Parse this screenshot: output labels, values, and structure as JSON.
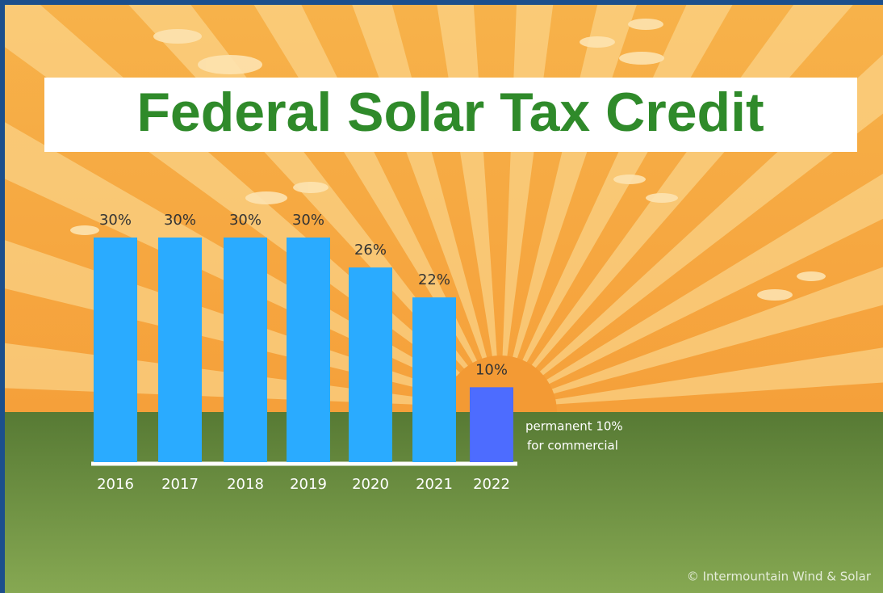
{
  "chart_data": {
    "type": "bar",
    "title": "Federal Solar Tax Credit",
    "categories": [
      "2016",
      "2017",
      "2018",
      "2019",
      "2020",
      "2021",
      "2022"
    ],
    "values": [
      30,
      30,
      30,
      30,
      26,
      22,
      10
    ],
    "value_labels": [
      "30%",
      "30%",
      "30%",
      "30%",
      "26%",
      "22%",
      "10%"
    ],
    "colors": [
      "#2aabff",
      "#2aabff",
      "#2aabff",
      "#2aabff",
      "#2aabff",
      "#2aabff",
      "#4d6cff"
    ],
    "annotation": [
      "permanent 10%",
      "for commercial"
    ],
    "credit": "© Intermountain Wind & Solar"
  }
}
